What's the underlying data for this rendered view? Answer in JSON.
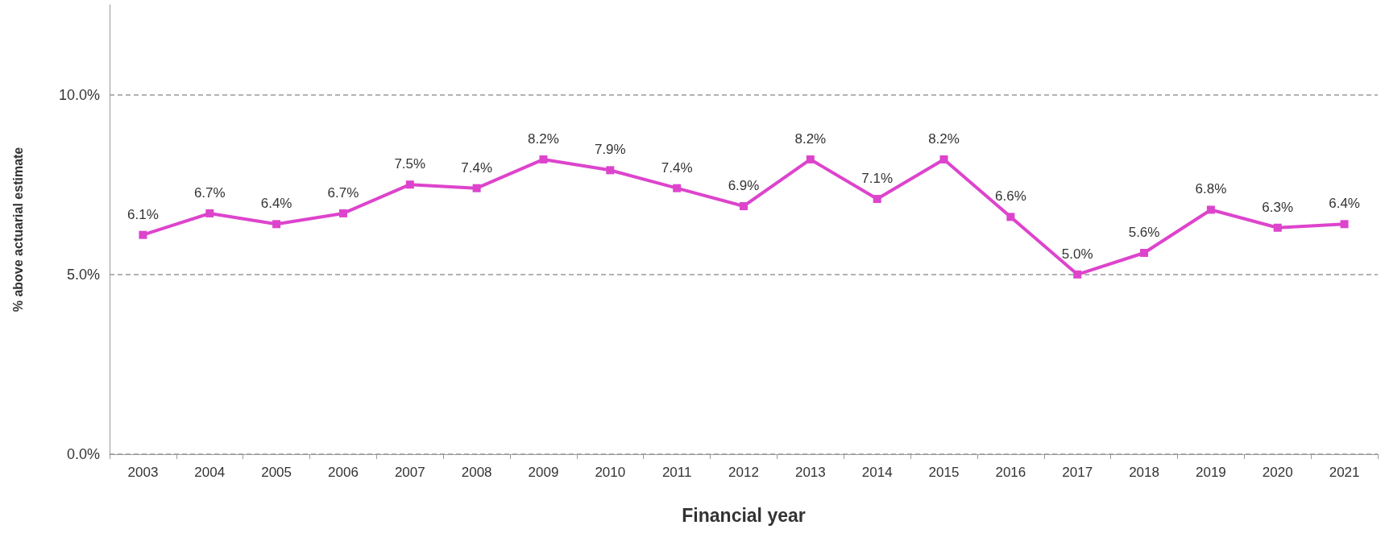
{
  "chart_data": {
    "type": "line",
    "xlabel": "Financial year",
    "ylabel": "% above actuarial estimate",
    "categories": [
      "2003",
      "2004",
      "2005",
      "2006",
      "2007",
      "2008",
      "2009",
      "2010",
      "2011",
      "2012",
      "2013",
      "2014",
      "2015",
      "2016",
      "2017",
      "2018",
      "2019",
      "2020",
      "2021"
    ],
    "series": [
      {
        "color": "#dd44cc",
        "values": [
          6.1,
          6.7,
          6.4,
          6.7,
          7.5,
          7.4,
          8.2,
          7.9,
          7.4,
          6.9,
          8.2,
          7.1,
          8.2,
          6.6,
          5.0,
          5.6,
          6.8,
          6.3,
          6.4
        ],
        "value_labels": [
          "6.1%",
          "6.7%",
          "6.4%",
          "6.7%",
          "7.5%",
          "7.4%",
          "8.2%",
          "7.9%",
          "7.4%",
          "6.9%",
          "8.2%",
          "7.1%",
          "8.2%",
          "6.6%",
          "5.0%",
          "5.6%",
          "6.8%",
          "6.3%",
          "6.4%"
        ]
      }
    ],
    "ylim": [
      0,
      12.5
    ],
    "yticks": [
      {
        "value": 0,
        "label": "0.0%"
      },
      {
        "value": 5,
        "label": "5.0%"
      },
      {
        "value": 10,
        "label": "10.0%"
      }
    ],
    "grid": "y",
    "line_style": "solid",
    "marker": "square"
  }
}
